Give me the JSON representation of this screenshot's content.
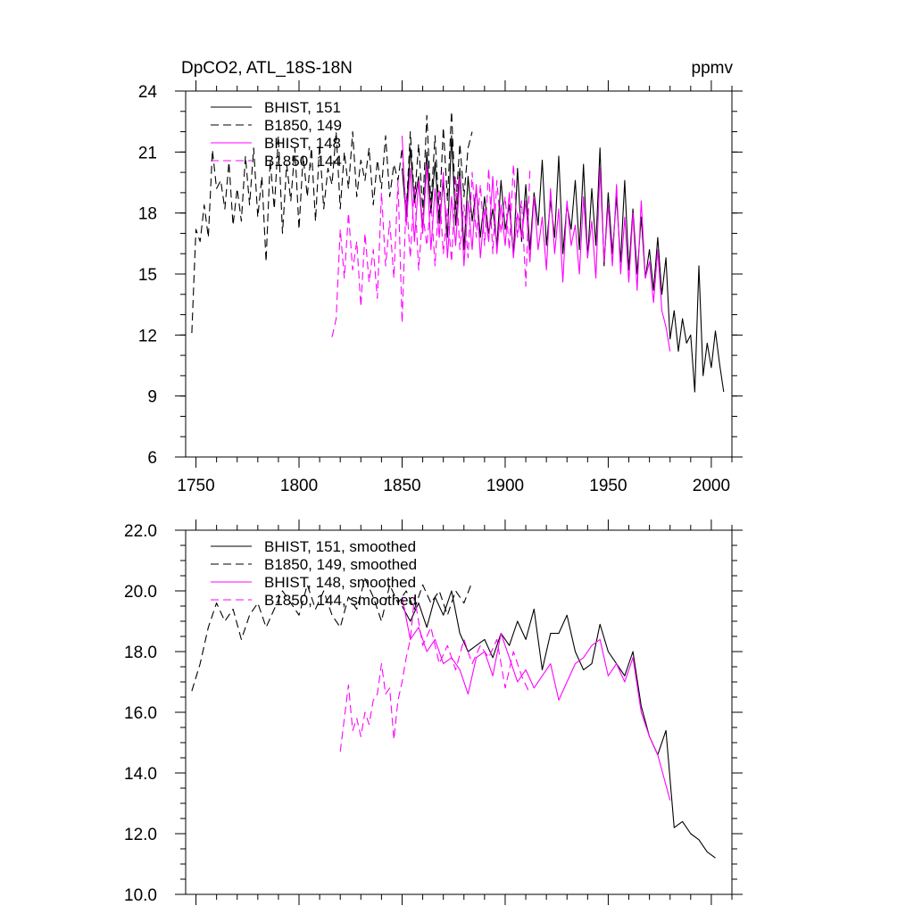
{
  "chart_data": [
    {
      "type": "line",
      "title": "DpCO2, ATL_18S-18N",
      "units": "ppmv",
      "xlim": [
        1745,
        2010
      ],
      "ylim": [
        6,
        24
      ],
      "xticks": [
        1750,
        1800,
        1850,
        1900,
        1950,
        2000
      ],
      "xtick_labels": [
        "1750",
        "1800",
        "1850",
        "1900",
        "1950",
        "2000"
      ],
      "yticks": [
        6,
        9,
        12,
        15,
        18,
        21,
        24
      ],
      "ytick_labels": [
        "6",
        "9",
        "12",
        "15",
        "18",
        "21",
        "24"
      ],
      "legend_position": "top-left",
      "series": [
        {
          "name": "BHIST, 151",
          "color": "#000000",
          "dash": "solid",
          "x": [
            1850,
            1852,
            1854,
            1856,
            1858,
            1860,
            1862,
            1864,
            1866,
            1868,
            1870,
            1872,
            1874,
            1876,
            1878,
            1880,
            1882,
            1884,
            1886,
            1888,
            1890,
            1892,
            1894,
            1896,
            1898,
            1900,
            1902,
            1904,
            1906,
            1908,
            1910,
            1912,
            1914,
            1916,
            1918,
            1920,
            1922,
            1924,
            1926,
            1928,
            1930,
            1932,
            1934,
            1936,
            1938,
            1940,
            1942,
            1944,
            1946,
            1948,
            1950,
            1952,
            1954,
            1956,
            1958,
            1960,
            1962,
            1964,
            1966,
            1968,
            1970,
            1972,
            1974,
            1976,
            1978,
            1980,
            1982,
            1984,
            1986,
            1988,
            1990,
            1992,
            1994,
            1996,
            1998,
            2000,
            2002,
            2004,
            2006
          ],
          "y": [
            20.2,
            17.8,
            21.2,
            18.5,
            19.8,
            17.2,
            21.0,
            18.0,
            20.5,
            17.5,
            19.5,
            16.8,
            21.8,
            17.4,
            20.2,
            16.2,
            19.8,
            17.6,
            19.2,
            16.8,
            18.8,
            17.0,
            18.2,
            16.4,
            19.6,
            17.2,
            18.4,
            15.9,
            20.2,
            16.6,
            19.4,
            16.2,
            19.0,
            17.4,
            20.6,
            16.4,
            18.6,
            16.8,
            20.8,
            16.0,
            18.4,
            17.2,
            19.6,
            16.2,
            20.4,
            15.8,
            19.2,
            16.4,
            21.2,
            15.4,
            19.0,
            16.0,
            18.8,
            15.6,
            19.6,
            15.2,
            18.2,
            15.0,
            17.8,
            14.8,
            16.2,
            14.2,
            16.8,
            14.0,
            15.8,
            11.8,
            13.2,
            11.2,
            12.8,
            11.6,
            12.0,
            9.2,
            15.4,
            10.0,
            11.6,
            10.4,
            12.2,
            10.6,
            9.2
          ]
        },
        {
          "name": "B1850, 149",
          "color": "#000000",
          "dash": "dashed",
          "x": [
            1748,
            1750,
            1752,
            1754,
            1756,
            1758,
            1760,
            1762,
            1764,
            1766,
            1768,
            1770,
            1772,
            1774,
            1776,
            1778,
            1780,
            1782,
            1784,
            1786,
            1788,
            1790,
            1792,
            1794,
            1796,
            1798,
            1800,
            1802,
            1804,
            1806,
            1808,
            1810,
            1812,
            1814,
            1816,
            1818,
            1820,
            1822,
            1824,
            1826,
            1828,
            1830,
            1832,
            1834,
            1836,
            1838,
            1840,
            1842,
            1844,
            1846,
            1848,
            1850,
            1852,
            1854,
            1856,
            1858,
            1860,
            1862,
            1864,
            1866,
            1868,
            1870,
            1872,
            1874,
            1876,
            1878,
            1880,
            1882,
            1884
          ],
          "y": [
            12.1,
            17.2,
            16.6,
            18.4,
            16.8,
            21.1,
            19.2,
            19.6,
            18.2,
            20.5,
            17.4,
            19.2,
            17.6,
            20.8,
            18.4,
            21.2,
            17.8,
            19.8,
            15.6,
            20.6,
            18.2,
            21.8,
            17.0,
            20.4,
            18.6,
            21.2,
            17.2,
            20.8,
            18.8,
            21.2,
            17.6,
            21.4,
            18.2,
            20.2,
            19.4,
            22.0,
            18.2,
            21.0,
            19.2,
            22.0,
            18.8,
            20.6,
            19.6,
            21.2,
            18.4,
            20.6,
            19.2,
            21.8,
            18.8,
            20.4,
            19.6,
            21.2,
            18.0,
            22.0,
            18.6,
            21.4,
            18.2,
            22.8,
            18.4,
            21.8,
            17.8,
            22.2,
            18.6,
            23.0,
            18.2,
            21.4,
            18.8,
            21.2,
            22.0
          ]
        },
        {
          "name": "BHIST, 148",
          "color": "#ff00ff",
          "dash": "solid",
          "x": [
            1850,
            1852,
            1854,
            1856,
            1858,
            1860,
            1862,
            1864,
            1866,
            1868,
            1870,
            1872,
            1874,
            1876,
            1878,
            1880,
            1882,
            1884,
            1886,
            1888,
            1890,
            1892,
            1894,
            1896,
            1898,
            1900,
            1902,
            1904,
            1906,
            1908,
            1910,
            1912,
            1914,
            1916,
            1918,
            1920,
            1922,
            1924,
            1926,
            1928,
            1930,
            1932,
            1934,
            1936,
            1938,
            1940,
            1942,
            1944,
            1946,
            1948,
            1950,
            1952,
            1954,
            1956,
            1958,
            1960,
            1962,
            1964,
            1966,
            1968,
            1970,
            1972,
            1974,
            1976,
            1978,
            1980
          ],
          "y": [
            21.8,
            17.4,
            20.2,
            16.6,
            19.6,
            17.0,
            20.4,
            16.2,
            19.2,
            16.8,
            20.0,
            15.8,
            18.8,
            16.4,
            19.8,
            15.4,
            18.6,
            16.2,
            19.4,
            15.8,
            18.2,
            16.6,
            19.8,
            16.0,
            18.4,
            16.4,
            19.0,
            15.8,
            18.0,
            16.8,
            18.6,
            15.6,
            18.8,
            16.2,
            17.8,
            15.2,
            19.2,
            16.0,
            18.2,
            14.6,
            18.6,
            16.4,
            17.4,
            15.0,
            18.8,
            15.8,
            17.6,
            14.8,
            20.2,
            15.6,
            18.4,
            15.4,
            19.4,
            15.0,
            17.8,
            14.6,
            18.0,
            14.2,
            18.6,
            14.8,
            15.6,
            13.6,
            16.2,
            13.2,
            12.4,
            11.2
          ]
        },
        {
          "name": "B1850, 144",
          "color": "#ff00ff",
          "dash": "dashed",
          "x": [
            1816,
            1818,
            1820,
            1822,
            1824,
            1826,
            1828,
            1830,
            1832,
            1834,
            1836,
            1838,
            1840,
            1842,
            1844,
            1846,
            1848,
            1850,
            1852,
            1854,
            1856,
            1858,
            1860,
            1862,
            1864,
            1866,
            1868,
            1870,
            1872,
            1874,
            1876,
            1878,
            1880,
            1882,
            1884,
            1886,
            1888,
            1890,
            1892,
            1894,
            1896,
            1898,
            1900,
            1902,
            1904,
            1906,
            1908,
            1910,
            1912
          ],
          "y": [
            11.9,
            12.8,
            17.2,
            14.8,
            18.0,
            15.2,
            16.6,
            13.4,
            17.0,
            14.6,
            16.2,
            13.8,
            19.0,
            15.4,
            17.6,
            14.8,
            19.6,
            12.6,
            18.8,
            15.8,
            19.4,
            15.2,
            18.0,
            16.4,
            18.6,
            15.4,
            19.2,
            16.0,
            18.2,
            15.6,
            19.8,
            16.2,
            18.4,
            15.8,
            20.0,
            16.8,
            19.4,
            16.4,
            20.2,
            16.0,
            19.6,
            17.0,
            18.8,
            16.2,
            20.4,
            16.8,
            18.6,
            14.4,
            20.2
          ]
        }
      ]
    },
    {
      "type": "line",
      "xlim": [
        1745,
        2010
      ],
      "ylim": [
        10,
        22
      ],
      "xticks": [
        1750,
        1800,
        1850,
        1900,
        1950,
        2000
      ],
      "yticks": [
        10,
        12,
        14,
        16,
        18,
        20,
        22
      ],
      "ytick_labels": [
        "10.0",
        "12.0",
        "14.0",
        "16.0",
        "18.0",
        "20.0",
        "22.0"
      ],
      "legend_position": "top-left",
      "series": [
        {
          "name": "BHIST, 151, smoothed",
          "color": "#000000",
          "dash": "solid",
          "x": [
            1850,
            1854,
            1858,
            1862,
            1866,
            1870,
            1874,
            1878,
            1882,
            1886,
            1890,
            1894,
            1898,
            1902,
            1906,
            1910,
            1914,
            1918,
            1922,
            1926,
            1930,
            1934,
            1938,
            1942,
            1946,
            1950,
            1954,
            1958,
            1962,
            1966,
            1970,
            1974,
            1978,
            1982,
            1986,
            1990,
            1994,
            1998,
            2002
          ],
          "y": [
            19.5,
            19.0,
            19.6,
            18.8,
            19.8,
            19.2,
            20.0,
            18.6,
            18.0,
            18.2,
            18.4,
            17.8,
            18.6,
            18.2,
            19.0,
            18.4,
            19.4,
            17.4,
            18.6,
            18.6,
            19.2,
            18.0,
            17.4,
            17.6,
            18.9,
            18.0,
            17.6,
            17.2,
            18.0,
            16.2,
            15.2,
            14.6,
            15.4,
            12.2,
            12.4,
            12.0,
            11.8,
            11.4,
            11.2
          ]
        },
        {
          "name": "B1850, 149, smoothed",
          "color": "#000000",
          "dash": "dashed",
          "x": [
            1748,
            1752,
            1756,
            1760,
            1764,
            1768,
            1772,
            1776,
            1780,
            1784,
            1788,
            1792,
            1796,
            1800,
            1804,
            1808,
            1812,
            1816,
            1820,
            1824,
            1828,
            1832,
            1836,
            1840,
            1844,
            1848,
            1852,
            1856,
            1860,
            1864,
            1868,
            1872,
            1876,
            1880,
            1884
          ],
          "y": [
            16.7,
            17.6,
            18.8,
            19.6,
            19.0,
            19.4,
            18.4,
            19.2,
            19.6,
            18.8,
            19.4,
            20.0,
            19.6,
            19.2,
            20.2,
            19.4,
            20.0,
            19.2,
            18.8,
            19.8,
            19.4,
            20.4,
            19.8,
            19.0,
            20.2,
            19.6,
            20.0,
            19.4,
            20.2,
            19.6,
            20.0,
            19.2,
            20.0,
            19.6,
            20.3
          ]
        },
        {
          "name": "BHIST, 148, smoothed",
          "color": "#ff00ff",
          "dash": "solid",
          "x": [
            1850,
            1854,
            1858,
            1862,
            1866,
            1870,
            1874,
            1878,
            1882,
            1886,
            1890,
            1894,
            1898,
            1902,
            1906,
            1910,
            1914,
            1918,
            1922,
            1926,
            1930,
            1934,
            1938,
            1942,
            1946,
            1950,
            1954,
            1958,
            1962,
            1966,
            1970,
            1974,
            1978,
            1980
          ],
          "y": [
            19.8,
            18.4,
            18.8,
            18.0,
            18.4,
            17.6,
            17.8,
            17.4,
            16.6,
            17.8,
            18.0,
            17.2,
            18.6,
            17.8,
            17.0,
            17.4,
            16.8,
            17.2,
            17.6,
            16.4,
            17.0,
            17.6,
            17.8,
            18.2,
            18.4,
            17.2,
            17.6,
            17.0,
            17.8,
            16.0,
            15.2,
            14.6,
            13.6,
            13.1
          ]
        },
        {
          "name": "B1850, 144, smoothed",
          "color": "#ff00ff",
          "dash": "dashed",
          "x": [
            1820,
            1822,
            1824,
            1826,
            1828,
            1830,
            1832,
            1834,
            1836,
            1838,
            1840,
            1842,
            1844,
            1846,
            1848,
            1850,
            1852,
            1854,
            1856,
            1860,
            1864,
            1868,
            1872,
            1876,
            1880,
            1884,
            1888,
            1892,
            1896,
            1900,
            1904,
            1908,
            1912
          ],
          "y": [
            14.7,
            15.8,
            16.9,
            15.4,
            15.8,
            15.2,
            16.0,
            15.6,
            16.4,
            16.6,
            17.6,
            16.6,
            16.8,
            15.1,
            16.4,
            17.0,
            17.8,
            18.4,
            19.8,
            18.2,
            18.8,
            17.6,
            18.2,
            17.4,
            18.4,
            17.6,
            18.2,
            17.8,
            18.4,
            16.8,
            18.0,
            17.2,
            16.6
          ]
        }
      ]
    }
  ]
}
